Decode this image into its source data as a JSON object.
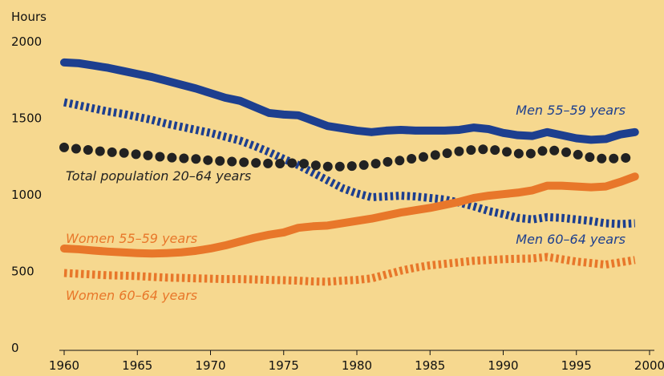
{
  "chart_data": {
    "type": "line",
    "ylabel": "Hours",
    "x": [
      1960,
      1961,
      1962,
      1963,
      1964,
      1965,
      1966,
      1967,
      1968,
      1969,
      1970,
      1971,
      1972,
      1973,
      1974,
      1975,
      1976,
      1977,
      1978,
      1979,
      1980,
      1981,
      1982,
      1983,
      1984,
      1985,
      1986,
      1987,
      1988,
      1989,
      1990,
      1991,
      1992,
      1993,
      1994,
      1995,
      1996,
      1997,
      1998,
      1999
    ],
    "xlim": [
      1960,
      2000
    ],
    "xticks": [
      1960,
      1965,
      1970,
      1975,
      1980,
      1985,
      1990,
      1995,
      2000
    ],
    "ylim": [
      0,
      2000
    ],
    "yticks": [
      0,
      500,
      1000,
      1500,
      2000
    ],
    "grid": false,
    "series": [
      {
        "name": "Men 55–59 years",
        "color": "#1d3f8f",
        "style": "solid",
        "values": [
          1880,
          1875,
          1860,
          1845,
          1825,
          1805,
          1785,
          1760,
          1735,
          1710,
          1680,
          1650,
          1630,
          1590,
          1550,
          1540,
          1535,
          1500,
          1465,
          1450,
          1435,
          1425,
          1435,
          1440,
          1435,
          1435,
          1435,
          1440,
          1455,
          1445,
          1420,
          1405,
          1400,
          1425,
          1405,
          1385,
          1375,
          1380,
          1410,
          1425
        ]
      },
      {
        "name": "Men 60–64 years",
        "color": "#1d3f8f",
        "style": "dashed",
        "values": [
          1620,
          1600,
          1580,
          1560,
          1545,
          1525,
          1505,
          1480,
          1460,
          1440,
          1420,
          1395,
          1370,
          1335,
          1295,
          1250,
          1210,
          1160,
          1110,
          1060,
          1025,
          1000,
          1005,
          1010,
          1005,
          995,
          985,
          965,
          940,
          910,
          890,
          865,
          855,
          870,
          865,
          855,
          845,
          830,
          825,
          830
        ]
      },
      {
        "name": "Total population 20–64 years",
        "color": "#222222",
        "style": "dotted",
        "values": [
          1325,
          1315,
          1305,
          1295,
          1290,
          1280,
          1270,
          1260,
          1255,
          1250,
          1240,
          1235,
          1230,
          1225,
          1220,
          1220,
          1225,
          1210,
          1200,
          1200,
          1205,
          1215,
          1230,
          1240,
          1255,
          1270,
          1285,
          1300,
          1310,
          1315,
          1300,
          1285,
          1285,
          1310,
          1300,
          1280,
          1260,
          1250,
          1255,
          1260
        ]
      },
      {
        "name": "Women 55–59 years",
        "color": "#e8772a",
        "style": "solid",
        "values": [
          665,
          660,
          652,
          645,
          640,
          635,
          632,
          635,
          640,
          650,
          665,
          685,
          710,
          735,
          755,
          770,
          800,
          810,
          815,
          830,
          845,
          860,
          880,
          900,
          915,
          930,
          950,
          970,
          995,
          1010,
          1020,
          1030,
          1045,
          1075,
          1075,
          1070,
          1065,
          1070,
          1100,
          1135
        ]
      },
      {
        "name": "Women 60–64 years",
        "color": "#e8772a",
        "style": "dashed",
        "values": [
          505,
          500,
          495,
          490,
          488,
          485,
          480,
          475,
          473,
          470,
          468,
          465,
          465,
          463,
          460,
          458,
          455,
          450,
          448,
          455,
          460,
          470,
          495,
          520,
          540,
          555,
          565,
          575,
          585,
          590,
          595,
          598,
          600,
          610,
          595,
          580,
          570,
          560,
          575,
          590
        ]
      }
    ]
  }
}
